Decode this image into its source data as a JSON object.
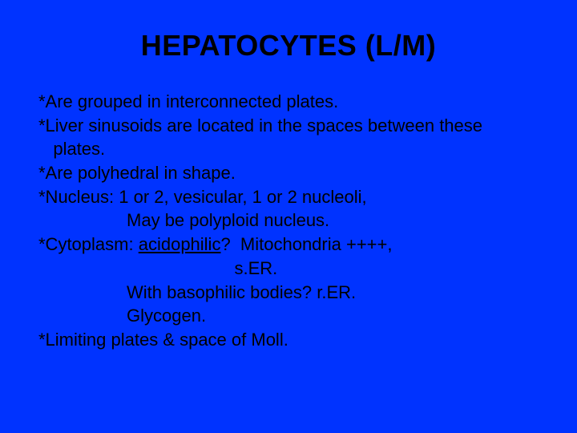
{
  "slide": {
    "background_color": "#0033ff",
    "text_color": "#000000",
    "title": "HEPATOCYTES (L/M)",
    "title_fontsize": 36,
    "title_weight": "bold",
    "body_fontsize": 22,
    "body_font": "Arial",
    "lines": [
      {
        "text": "*Are grouped in interconnected plates."
      },
      {
        "text": "*Liver sinusoids are located in the spaces between these"
      },
      {
        "text": "   plates."
      },
      {
        "text": "*Are polyhedral in shape."
      },
      {
        "text": "*Nucleus: 1 or 2, vesicular, 1 or 2 nucleoli,"
      },
      {
        "text": "                  May be polyploid nucleus."
      },
      {
        "prefix": "*Cytoplasm: ",
        "underlined": "acidophilic",
        "suffix": "?  Mitochondria ++++,"
      },
      {
        "text": "                                        s.ER."
      },
      {
        "text": "                  With basophilic bodies? r.ER."
      },
      {
        "text": "                  Glycogen."
      },
      {
        "text": "*Limiting plates & space of Moll."
      }
    ]
  }
}
